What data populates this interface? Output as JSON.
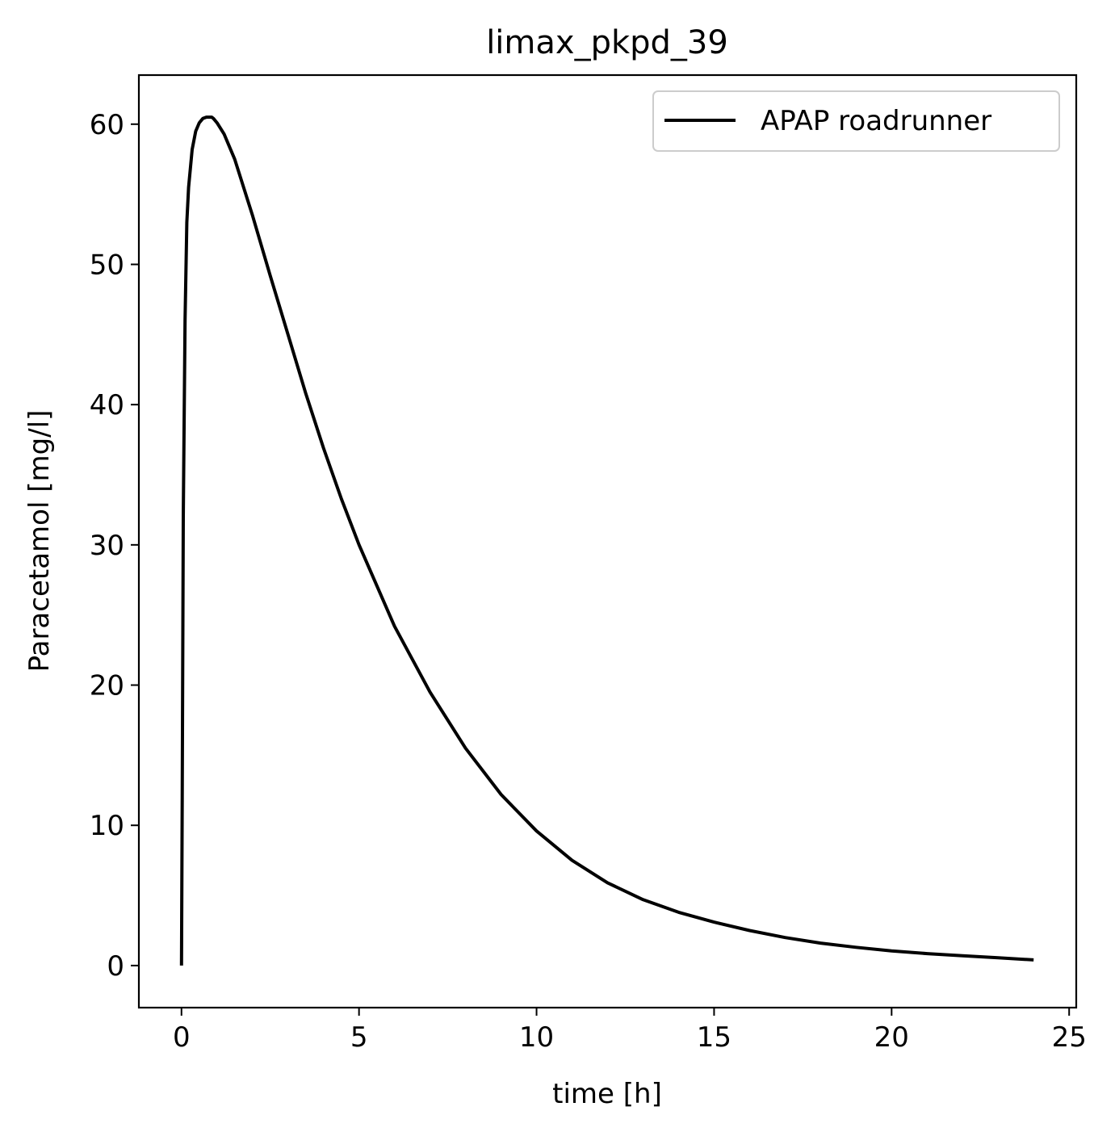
{
  "chart_data": {
    "type": "line",
    "title": "limax_pkpd_39",
    "xlabel": "time [h]",
    "ylabel": "Paracetamol [mg/l]",
    "xlim": [
      -1.2,
      25.2
    ],
    "ylim": [
      -3,
      63.5
    ],
    "xticks": [
      0,
      5,
      10,
      15,
      20,
      25
    ],
    "yticks": [
      0,
      10,
      20,
      30,
      40,
      50,
      60
    ],
    "xtick_labels": [
      "0",
      "5",
      "10",
      "15",
      "20",
      "25"
    ],
    "ytick_labels": [
      "0",
      "10",
      "20",
      "30",
      "40",
      "50",
      "60"
    ],
    "grid": false,
    "legend": {
      "position": "top-right",
      "entries": [
        "APAP roadrunner"
      ]
    },
    "series": [
      {
        "name": "APAP roadrunner",
        "color": "#000000",
        "x": [
          0,
          0.02,
          0.05,
          0.1,
          0.15,
          0.2,
          0.3,
          0.4,
          0.5,
          0.6,
          0.7,
          0.8,
          0.85,
          0.9,
          1.0,
          1.2,
          1.5,
          2,
          2.5,
          3,
          3.5,
          4,
          4.5,
          5,
          6,
          7,
          8,
          9,
          10,
          11,
          12,
          13,
          14,
          15,
          16,
          17,
          18,
          19,
          20,
          21,
          22,
          23,
          24
        ],
        "y": [
          0,
          12,
          32,
          46,
          53,
          55.5,
          58.2,
          59.5,
          60.1,
          60.4,
          60.5,
          60.5,
          60.5,
          60.4,
          60.1,
          59.3,
          57.5,
          53.5,
          49.2,
          45,
          40.8,
          36.9,
          33.3,
          30,
          24.2,
          19.5,
          15.5,
          12.2,
          9.6,
          7.5,
          5.9,
          4.7,
          3.8,
          3.1,
          2.5,
          2.0,
          1.6,
          1.3,
          1.05,
          0.85,
          0.7,
          0.55,
          0.4
        ]
      }
    ]
  }
}
